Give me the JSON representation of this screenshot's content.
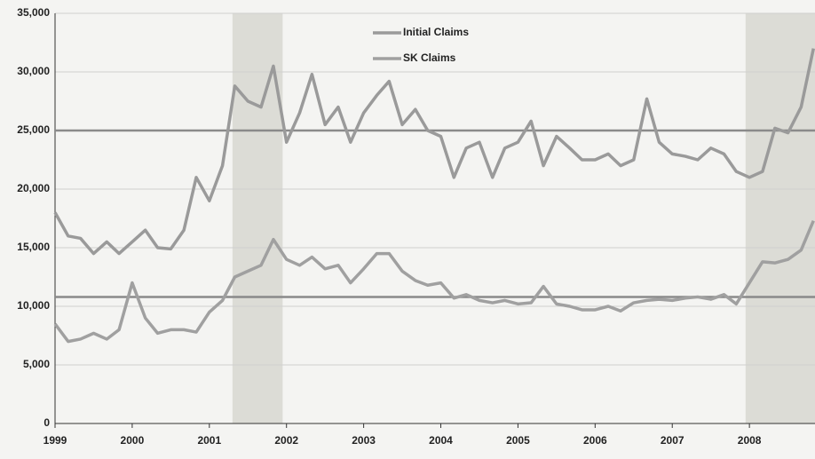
{
  "chart_data": {
    "type": "line",
    "x": [
      1999,
      1999.17,
      1999.33,
      1999.5,
      1999.67,
      1999.83,
      2000,
      2000.17,
      2000.33,
      2000.5,
      2000.67,
      2000.83,
      2001,
      2001.17,
      2001.33,
      2001.5,
      2001.67,
      2001.83,
      2002,
      2002.17,
      2002.33,
      2002.5,
      2002.67,
      2002.83,
      2003,
      2003.17,
      2003.33,
      2003.5,
      2003.67,
      2003.83,
      2004,
      2004.17,
      2004.33,
      2004.5,
      2004.67,
      2004.83,
      2005,
      2005.17,
      2005.33,
      2005.5,
      2005.67,
      2005.83,
      2006,
      2006.17,
      2006.33,
      2006.5,
      2006.67,
      2006.83,
      2007,
      2007.17,
      2007.33,
      2007.5,
      2007.67,
      2007.83,
      2008,
      2008.17,
      2008.33,
      2008.5,
      2008.67,
      2008.83
    ],
    "series": [
      {
        "name": "Initial Claims",
        "color": "#9a9a9a",
        "values": [
          18000,
          16000,
          15800,
          14500,
          15500,
          14500,
          15500,
          16500,
          15000,
          14900,
          16500,
          21000,
          19000,
          22000,
          28800,
          27500,
          27000,
          30500,
          24000,
          26500,
          29800,
          25500,
          27000,
          24000,
          26500,
          28000,
          29200,
          25500,
          26800,
          25000,
          24500,
          21000,
          23500,
          24000,
          21000,
          23500,
          24000,
          25800,
          22000,
          24500,
          23500,
          22500,
          22500,
          23000,
          22000,
          22500,
          27700,
          24000,
          23000,
          22800,
          22500,
          23500,
          23000,
          21500,
          21000,
          21500,
          25200,
          24800,
          27000,
          32000
        ]
      },
      {
        "name": "SK Claims",
        "color": "#a0a0a0",
        "values": [
          8500,
          7000,
          7200,
          7700,
          7200,
          8000,
          12000,
          9000,
          7700,
          8000,
          8000,
          7800,
          9500,
          10500,
          12500,
          13000,
          13500,
          15700,
          14000,
          13500,
          14200,
          13200,
          13500,
          12000,
          13200,
          14500,
          14500,
          13000,
          12200,
          11800,
          12000,
          10700,
          11000,
          10500,
          10300,
          10500,
          10200,
          10300,
          11700,
          10200,
          10000,
          9700,
          9700,
          10000,
          9600,
          10300,
          10500,
          10600,
          10500,
          10700,
          10800,
          10600,
          11000,
          10200,
          12000,
          13800,
          13700,
          14000,
          14800,
          17300
        ]
      }
    ],
    "hlines": [
      25000,
      10800
    ],
    "shaded": [
      [
        2001.3,
        2001.95
      ],
      [
        2007.95,
        2008.85
      ]
    ],
    "xlim": [
      1999,
      2008.85
    ],
    "xticks": [
      1999,
      2000,
      2001,
      2002,
      2003,
      2004,
      2005,
      2006,
      2007,
      2008
    ],
    "ylim": [
      0,
      35000
    ],
    "yticks": [
      0,
      {
        "value": 5000,
        "label": "5,000"
      },
      {
        "value": 10000,
        "label": "10,000"
      },
      {
        "value": 15000,
        "label": "15,000"
      },
      {
        "value": 20000,
        "label": "20,000"
      },
      {
        "value": 25000,
        "label": "25,000"
      },
      {
        "value": 30000,
        "label": "30,000"
      },
      {
        "value": 35000,
        "label": "35,000"
      }
    ],
    "grid": true
  }
}
